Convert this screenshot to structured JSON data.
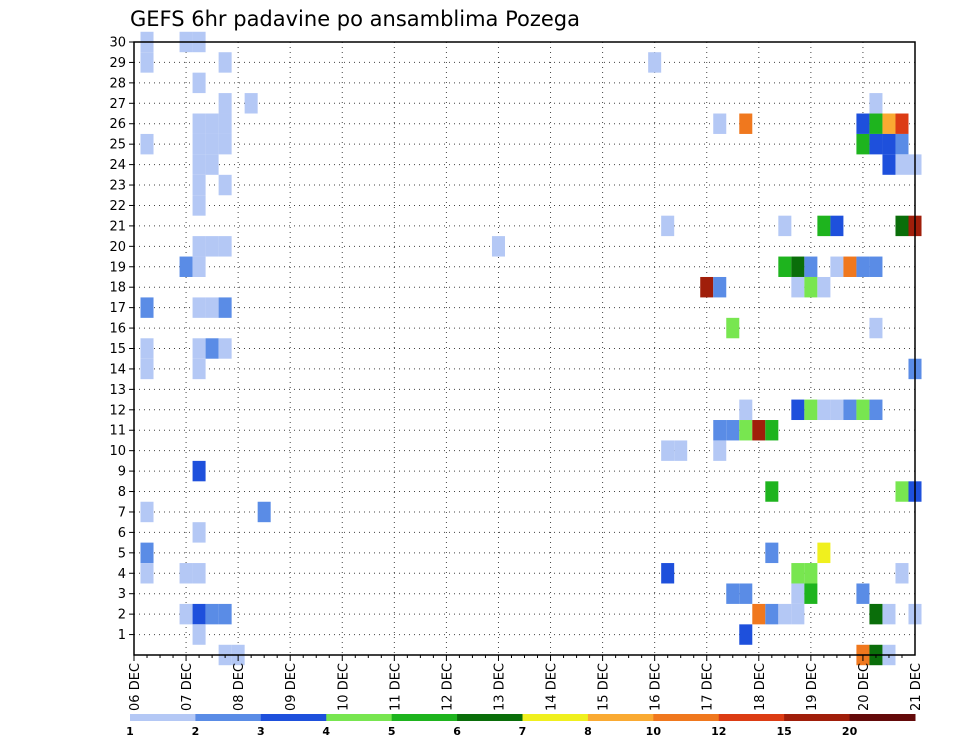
{
  "chart_data": {
    "type": "heatmap",
    "title": "GEFS 6hr padavine po ansamblima Pozega",
    "xlabel": "",
    "ylabel": "",
    "x_tick_labels": [
      "06 DEC",
      "07 DEC",
      "08 DEC",
      "09 DEC",
      "10 DEC",
      "11 DEC",
      "12 DEC",
      "13 DEC",
      "14 DEC",
      "15 DEC",
      "16 DEC",
      "17 DEC",
      "18 DEC",
      "19 DEC",
      "20 DEC",
      "21 DEC"
    ],
    "y_tick_labels": [
      "1",
      "2",
      "3",
      "4",
      "5",
      "6",
      "7",
      "8",
      "9",
      "10",
      "11",
      "12",
      "13",
      "14",
      "15",
      "16",
      "17",
      "18",
      "19",
      "20",
      "21",
      "22",
      "23",
      "24",
      "25",
      "26",
      "27",
      "28",
      "29",
      "30"
    ],
    "xlim": [
      0,
      60
    ],
    "ylim": [
      0,
      30
    ],
    "grid": true,
    "legend": {
      "placement": "bottom",
      "thresholds": [
        "1",
        "2",
        "3",
        "4",
        "5",
        "6",
        "7",
        "8",
        "10",
        "12",
        "15",
        "20"
      ],
      "colors": [
        "#b4c8f5",
        "#5a8ce6",
        "#1e50dc",
        "#78e650",
        "#1eb41e",
        "#0a6e0a",
        "#f0f01e",
        "#faaa32",
        "#f0781e",
        "#dc3c14",
        "#a01e0a",
        "#640a0a"
      ]
    },
    "cells": [
      {
        "step": 1,
        "member": 30,
        "level": 1
      },
      {
        "step": 1,
        "member": 29,
        "level": 1
      },
      {
        "step": 1,
        "member": 25,
        "level": 1
      },
      {
        "step": 1,
        "member": 17,
        "level": 2
      },
      {
        "step": 1,
        "member": 15,
        "level": 1
      },
      {
        "step": 1,
        "member": 14,
        "level": 1
      },
      {
        "step": 1,
        "member": 7,
        "level": 1
      },
      {
        "step": 1,
        "member": 5,
        "level": 2
      },
      {
        "step": 1,
        "member": 4,
        "level": 1
      },
      {
        "step": 4,
        "member": 30,
        "level": 1
      },
      {
        "step": 5,
        "member": 30,
        "level": 1
      },
      {
        "step": 4,
        "member": 19,
        "level": 2
      },
      {
        "step": 4,
        "member": 4,
        "level": 1
      },
      {
        "step": 4,
        "member": 2,
        "level": 1
      },
      {
        "step": 5,
        "member": 28,
        "level": 1
      },
      {
        "step": 5,
        "member": 26,
        "level": 1
      },
      {
        "step": 5,
        "member": 25,
        "level": 1
      },
      {
        "step": 5,
        "member": 24,
        "level": 1
      },
      {
        "step": 5,
        "member": 23,
        "level": 1
      },
      {
        "step": 5,
        "member": 22,
        "level": 1
      },
      {
        "step": 5,
        "member": 20,
        "level": 1
      },
      {
        "step": 5,
        "member": 19,
        "level": 1
      },
      {
        "step": 5,
        "member": 17,
        "level": 1
      },
      {
        "step": 5,
        "member": 15,
        "level": 1
      },
      {
        "step": 5,
        "member": 14,
        "level": 1
      },
      {
        "step": 5,
        "member": 9,
        "level": 3
      },
      {
        "step": 5,
        "member": 6,
        "level": 1
      },
      {
        "step": 5,
        "member": 4,
        "level": 1
      },
      {
        "step": 5,
        "member": 2,
        "level": 3
      },
      {
        "step": 5,
        "member": 1,
        "level": 1
      },
      {
        "step": 6,
        "member": 26,
        "level": 1
      },
      {
        "step": 6,
        "member": 25,
        "level": 1
      },
      {
        "step": 6,
        "member": 24,
        "level": 1
      },
      {
        "step": 6,
        "member": 20,
        "level": 1
      },
      {
        "step": 6,
        "member": 17,
        "level": 1
      },
      {
        "step": 6,
        "member": 15,
        "level": 2
      },
      {
        "step": 6,
        "member": 2,
        "level": 2
      },
      {
        "step": 7,
        "member": 29,
        "level": 1
      },
      {
        "step": 7,
        "member": 27,
        "level": 1
      },
      {
        "step": 7,
        "member": 26,
        "level": 1
      },
      {
        "step": 7,
        "member": 25,
        "level": 1
      },
      {
        "step": 7,
        "member": 23,
        "level": 1
      },
      {
        "step": 7,
        "member": 20,
        "level": 1
      },
      {
        "step": 7,
        "member": 17,
        "level": 2
      },
      {
        "step": 7,
        "member": 15,
        "level": 1
      },
      {
        "step": 7,
        "member": 2,
        "level": 2
      },
      {
        "step": 7,
        "member": 0,
        "level": 1
      },
      {
        "step": 8,
        "member": 0,
        "level": 1
      },
      {
        "step": 9,
        "member": 27,
        "level": 1
      },
      {
        "step": 10,
        "member": 7,
        "level": 2
      },
      {
        "step": 28,
        "member": 20,
        "level": 1
      },
      {
        "step": 40,
        "member": 29,
        "level": 1
      },
      {
        "step": 41,
        "member": 21,
        "level": 1
      },
      {
        "step": 41,
        "member": 10,
        "level": 1
      },
      {
        "step": 41,
        "member": 4,
        "level": 3
      },
      {
        "step": 42,
        "member": 10,
        "level": 1
      },
      {
        "step": 44,
        "member": 18,
        "level": 15
      },
      {
        "step": 45,
        "member": 26,
        "level": 1
      },
      {
        "step": 45,
        "member": 18,
        "level": 2
      },
      {
        "step": 45,
        "member": 11,
        "level": 2
      },
      {
        "step": 45,
        "member": 10,
        "level": 1
      },
      {
        "step": 46,
        "member": 16,
        "level": 4
      },
      {
        "step": 46,
        "member": 11,
        "level": 2
      },
      {
        "step": 46,
        "member": 3,
        "level": 2
      },
      {
        "step": 47,
        "member": 26,
        "level": 10
      },
      {
        "step": 47,
        "member": 12,
        "level": 1
      },
      {
        "step": 47,
        "member": 11,
        "level": 4
      },
      {
        "step": 47,
        "member": 3,
        "level": 2
      },
      {
        "step": 47,
        "member": 1,
        "level": 3
      },
      {
        "step": 48,
        "member": 11,
        "level": 15
      },
      {
        "step": 48,
        "member": 2,
        "level": 10
      },
      {
        "step": 49,
        "member": 11,
        "level": 5
      },
      {
        "step": 49,
        "member": 8,
        "level": 5
      },
      {
        "step": 49,
        "member": 5,
        "level": 2
      },
      {
        "step": 49,
        "member": 2,
        "level": 2
      },
      {
        "step": 50,
        "member": 21,
        "level": 1
      },
      {
        "step": 50,
        "member": 19,
        "level": 5
      },
      {
        "step": 50,
        "member": 2,
        "level": 1
      },
      {
        "step": 51,
        "member": 19,
        "level": 6
      },
      {
        "step": 51,
        "member": 18,
        "level": 1
      },
      {
        "step": 51,
        "member": 12,
        "level": 3
      },
      {
        "step": 51,
        "member": 4,
        "level": 4
      },
      {
        "step": 51,
        "member": 3,
        "level": 1
      },
      {
        "step": 51,
        "member": 2,
        "level": 1
      },
      {
        "step": 52,
        "member": 19,
        "level": 2
      },
      {
        "step": 52,
        "member": 18,
        "level": 4
      },
      {
        "step": 52,
        "member": 12,
        "level": 4
      },
      {
        "step": 52,
        "member": 4,
        "level": 4
      },
      {
        "step": 52,
        "member": 3,
        "level": 5
      },
      {
        "step": 53,
        "member": 21,
        "level": 5
      },
      {
        "step": 53,
        "member": 18,
        "level": 1
      },
      {
        "step": 53,
        "member": 12,
        "level": 1
      },
      {
        "step": 53,
        "member": 5,
        "level": 7
      },
      {
        "step": 54,
        "member": 21,
        "level": 3
      },
      {
        "step": 54,
        "member": 19,
        "level": 1
      },
      {
        "step": 54,
        "member": 12,
        "level": 1
      },
      {
        "step": 55,
        "member": 19,
        "level": 10
      },
      {
        "step": 55,
        "member": 12,
        "level": 2
      },
      {
        "step": 56,
        "member": 26,
        "level": 3
      },
      {
        "step": 56,
        "member": 25,
        "level": 5
      },
      {
        "step": 56,
        "member": 19,
        "level": 2
      },
      {
        "step": 56,
        "member": 12,
        "level": 4
      },
      {
        "step": 56,
        "member": 3,
        "level": 2
      },
      {
        "step": 56,
        "member": 0,
        "level": 10
      },
      {
        "step": 57,
        "member": 27,
        "level": 1
      },
      {
        "step": 57,
        "member": 26,
        "level": 5
      },
      {
        "step": 57,
        "member": 25,
        "level": 3
      },
      {
        "step": 57,
        "member": 19,
        "level": 2
      },
      {
        "step": 57,
        "member": 16,
        "level": 1
      },
      {
        "step": 57,
        "member": 12,
        "level": 2
      },
      {
        "step": 57,
        "member": 2,
        "level": 6
      },
      {
        "step": 57,
        "member": 0,
        "level": 6
      },
      {
        "step": 58,
        "member": 26,
        "level": 8
      },
      {
        "step": 58,
        "member": 25,
        "level": 3
      },
      {
        "step": 58,
        "member": 24,
        "level": 3
      },
      {
        "step": 58,
        "member": 2,
        "level": 1
      },
      {
        "step": 58,
        "member": 0,
        "level": 1
      },
      {
        "step": 59,
        "member": 26,
        "level": 12
      },
      {
        "step": 59,
        "member": 25,
        "level": 2
      },
      {
        "step": 59,
        "member": 24,
        "level": 1
      },
      {
        "step": 59,
        "member": 21,
        "level": 6
      },
      {
        "step": 59,
        "member": 8,
        "level": 4
      },
      {
        "step": 59,
        "member": 4,
        "level": 1
      },
      {
        "step": 60,
        "member": 24,
        "level": 1
      },
      {
        "step": 60,
        "member": 21,
        "level": 15
      },
      {
        "step": 60,
        "member": 14,
        "level": 2
      },
      {
        "step": 60,
        "member": 8,
        "level": 3
      },
      {
        "step": 60,
        "member": 2,
        "level": 1
      }
    ]
  }
}
